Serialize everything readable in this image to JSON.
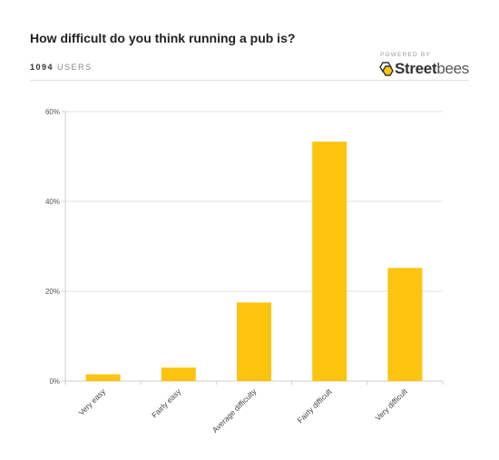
{
  "header": {
    "title": "How difficult do you think running a pub is?",
    "users_count": "1094",
    "users_label": "USERS",
    "powered_by": "POWERED BY",
    "brand_bold": "Street",
    "brand_light": "bees"
  },
  "colors": {
    "bar": "#FDC40F",
    "grid": "#e0e0e0",
    "axis": "#cfcfcf"
  },
  "chart_data": {
    "type": "bar",
    "title": "How difficult do you think running a pub is?",
    "categories": [
      "Very easy",
      "Fairly easy",
      "Average difficulty",
      "Fairly difficult",
      "Very difficult"
    ],
    "values": [
      1.5,
      3.0,
      17.5,
      53.3,
      25.2
    ],
    "ylim": [
      0,
      60
    ],
    "yticks": [
      0,
      20,
      40,
      60
    ],
    "ytick_labels": [
      "0%",
      "20%",
      "40%",
      "60%"
    ],
    "xlabel": "",
    "ylabel": "",
    "grid": true,
    "legend": "none"
  }
}
